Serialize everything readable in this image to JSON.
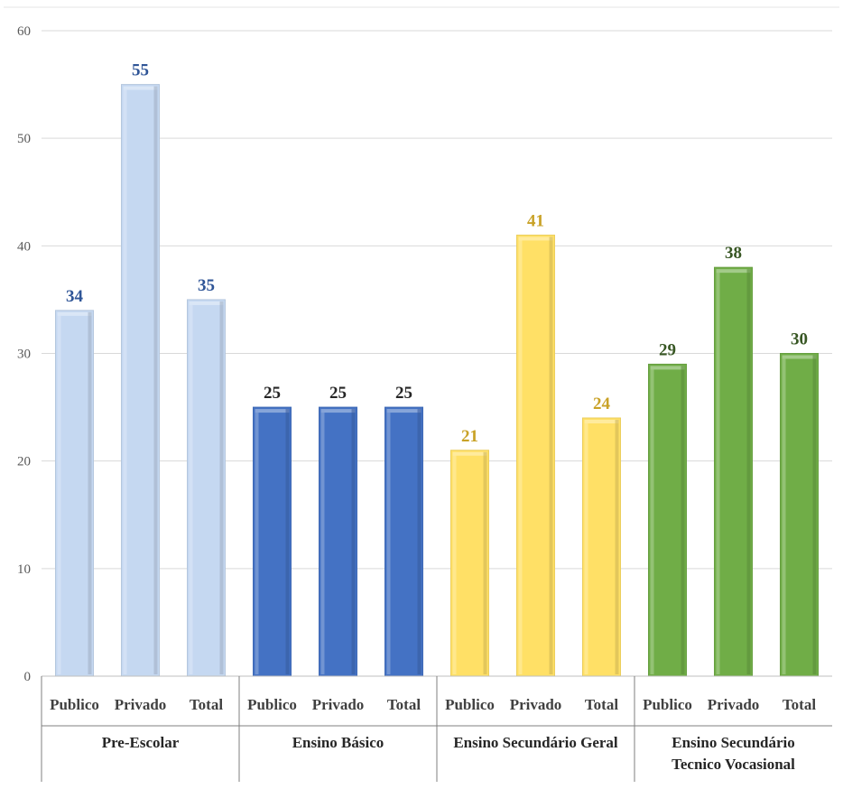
{
  "chart_data": {
    "type": "bar",
    "title": "",
    "xlabel": "",
    "ylabel": "",
    "ylim": [
      0,
      60
    ],
    "y_ticks": [
      0,
      10,
      20,
      30,
      40,
      50,
      60
    ],
    "grid": true,
    "legend": "none",
    "groups": [
      {
        "name": "Pre-Escolar",
        "name_lines": [
          "Pre-Escolar"
        ],
        "color": "#c5d8f1",
        "label_color": "#2f5597",
        "categories": [
          "Publico",
          "Privado",
          "Total"
        ],
        "values": [
          34,
          55,
          35
        ]
      },
      {
        "name": "Ensino Básico",
        "name_lines": [
          "Ensino Básico"
        ],
        "color": "#4472c4",
        "label_color": "#262626",
        "categories": [
          "Publico",
          "Privado",
          "Total"
        ],
        "values": [
          25,
          25,
          25
        ]
      },
      {
        "name": "Ensino Secundário Geral",
        "name_lines": [
          "Ensino Secundário Geral"
        ],
        "color": "#ffe066",
        "label_color": "#c9a227",
        "categories": [
          "Publico",
          "Privado",
          "Total"
        ],
        "values": [
          21,
          41,
          24
        ]
      },
      {
        "name": "Ensino Secundário Tecnico Vocasional",
        "name_lines": [
          "Ensino Secundário",
          "Tecnico Vocasional"
        ],
        "color": "#70ad47",
        "label_color": "#375623",
        "categories": [
          "Publico",
          "Privado",
          "Total"
        ],
        "values": [
          29,
          38,
          30
        ]
      }
    ]
  }
}
